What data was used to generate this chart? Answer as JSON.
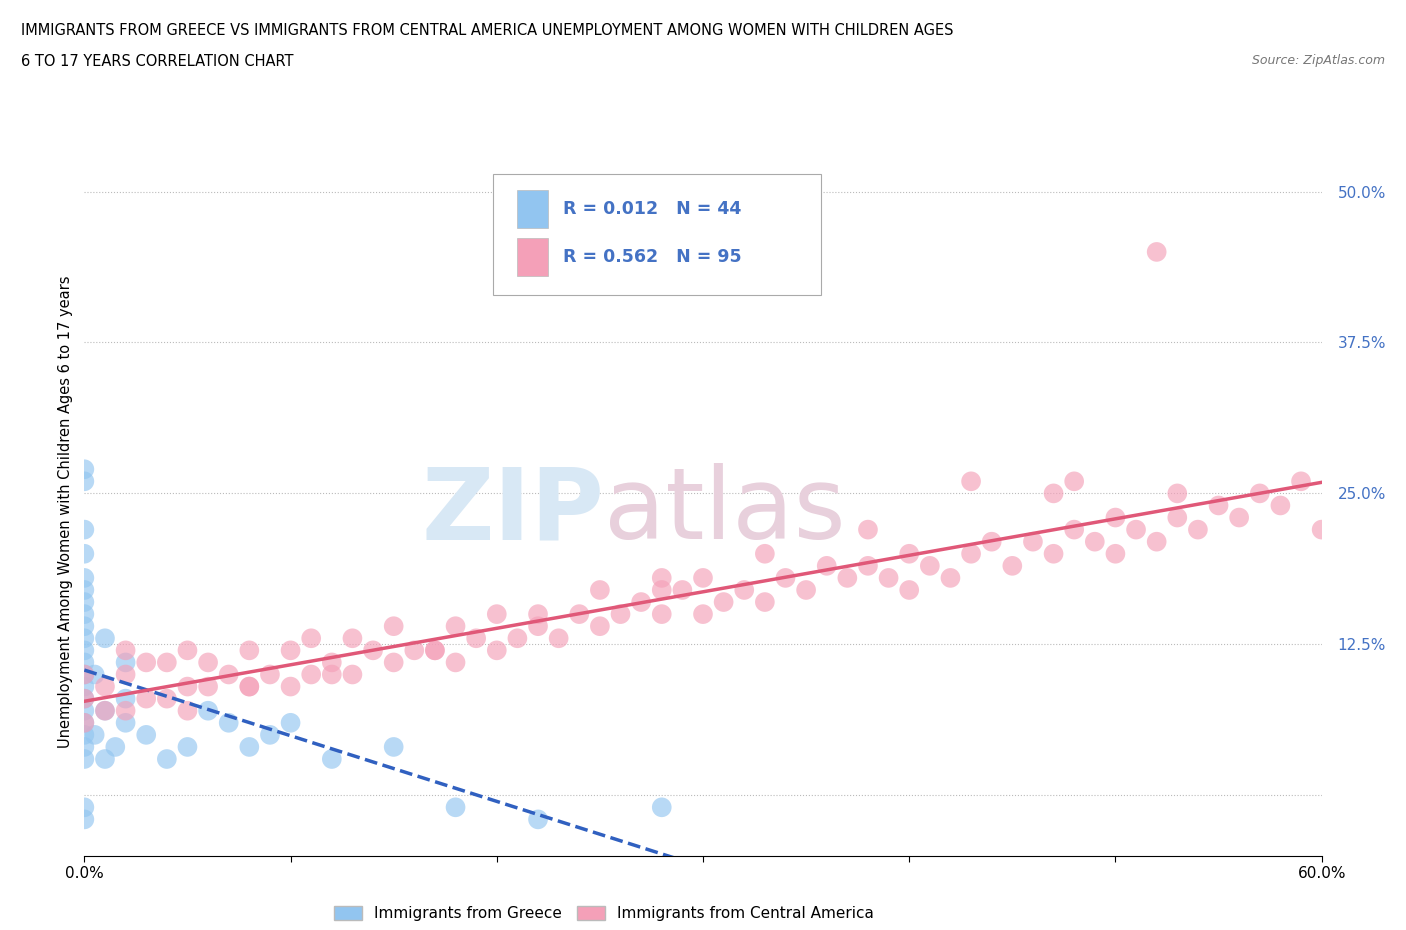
{
  "title_line1": "IMMIGRANTS FROM GREECE VS IMMIGRANTS FROM CENTRAL AMERICA UNEMPLOYMENT AMONG WOMEN WITH CHILDREN AGES",
  "title_line2": "6 TO 17 YEARS CORRELATION CHART",
  "source_text": "Source: ZipAtlas.com",
  "ylabel": "Unemployment Among Women with Children Ages 6 to 17 years",
  "xlim": [
    0.0,
    0.6
  ],
  "ylim": [
    -0.05,
    0.52
  ],
  "R_greece": 0.012,
  "N_greece": 44,
  "R_central": 0.562,
  "N_central": 95,
  "color_greece": "#92C5F0",
  "color_central": "#F4A0B8",
  "line_color_greece": "#3060C0",
  "line_color_central": "#E05878",
  "watermark_zip": "ZIP",
  "watermark_atlas": "atlas",
  "grid_color": "#BBBBBB",
  "tick_color": "#4472C4",
  "background_color": "#FFFFFF",
  "greece_x": [
    0.0,
    0.0,
    0.0,
    0.0,
    0.0,
    0.0,
    0.0,
    0.0,
    0.0,
    0.0,
    0.0,
    0.0,
    0.0,
    0.0,
    0.0,
    0.0,
    0.0,
    0.0,
    0.0,
    0.0,
    0.0,
    0.0,
    0.005,
    0.005,
    0.01,
    0.01,
    0.01,
    0.015,
    0.02,
    0.02,
    0.02,
    0.03,
    0.04,
    0.05,
    0.06,
    0.07,
    0.08,
    0.09,
    0.1,
    0.12,
    0.15,
    0.18,
    0.22,
    0.28
  ],
  "greece_y": [
    0.03,
    0.04,
    0.05,
    0.06,
    0.07,
    0.08,
    0.09,
    0.1,
    0.11,
    0.12,
    0.13,
    0.14,
    0.15,
    0.16,
    0.17,
    0.18,
    0.2,
    0.22,
    0.26,
    0.27,
    -0.01,
    -0.02,
    0.05,
    0.1,
    0.03,
    0.07,
    0.13,
    0.04,
    0.06,
    0.08,
    0.11,
    0.05,
    0.03,
    0.04,
    0.07,
    0.06,
    0.04,
    0.05,
    0.06,
    0.03,
    0.04,
    -0.01,
    -0.02,
    -0.01
  ],
  "central_x": [
    0.0,
    0.0,
    0.0,
    0.01,
    0.01,
    0.02,
    0.02,
    0.02,
    0.03,
    0.03,
    0.04,
    0.04,
    0.05,
    0.05,
    0.06,
    0.06,
    0.07,
    0.08,
    0.08,
    0.09,
    0.1,
    0.1,
    0.11,
    0.11,
    0.12,
    0.13,
    0.13,
    0.14,
    0.15,
    0.15,
    0.16,
    0.17,
    0.18,
    0.18,
    0.19,
    0.2,
    0.2,
    0.21,
    0.22,
    0.23,
    0.24,
    0.25,
    0.25,
    0.26,
    0.27,
    0.28,
    0.28,
    0.29,
    0.3,
    0.3,
    0.31,
    0.32,
    0.33,
    0.34,
    0.35,
    0.36,
    0.37,
    0.38,
    0.39,
    0.4,
    0.4,
    0.41,
    0.42,
    0.43,
    0.44,
    0.45,
    0.46,
    0.47,
    0.48,
    0.49,
    0.5,
    0.5,
    0.51,
    0.52,
    0.53,
    0.53,
    0.54,
    0.55,
    0.56,
    0.57,
    0.58,
    0.59,
    0.6,
    0.47,
    0.43,
    0.38,
    0.33,
    0.28,
    0.22,
    0.17,
    0.12,
    0.08,
    0.05,
    0.52,
    0.48
  ],
  "central_y": [
    0.06,
    0.08,
    0.1,
    0.07,
    0.09,
    0.07,
    0.1,
    0.12,
    0.08,
    0.11,
    0.08,
    0.11,
    0.09,
    0.12,
    0.09,
    0.11,
    0.1,
    0.09,
    0.12,
    0.1,
    0.09,
    0.12,
    0.1,
    0.13,
    0.11,
    0.1,
    0.13,
    0.12,
    0.11,
    0.14,
    0.12,
    0.12,
    0.11,
    0.14,
    0.13,
    0.12,
    0.15,
    0.13,
    0.14,
    0.13,
    0.15,
    0.14,
    0.17,
    0.15,
    0.16,
    0.15,
    0.18,
    0.17,
    0.15,
    0.18,
    0.16,
    0.17,
    0.16,
    0.18,
    0.17,
    0.19,
    0.18,
    0.19,
    0.18,
    0.17,
    0.2,
    0.19,
    0.18,
    0.2,
    0.21,
    0.19,
    0.21,
    0.2,
    0.22,
    0.21,
    0.2,
    0.23,
    0.22,
    0.21,
    0.23,
    0.25,
    0.22,
    0.24,
    0.23,
    0.25,
    0.24,
    0.26,
    0.22,
    0.25,
    0.26,
    0.22,
    0.2,
    0.17,
    0.15,
    0.12,
    0.1,
    0.09,
    0.07,
    0.45,
    0.26
  ]
}
